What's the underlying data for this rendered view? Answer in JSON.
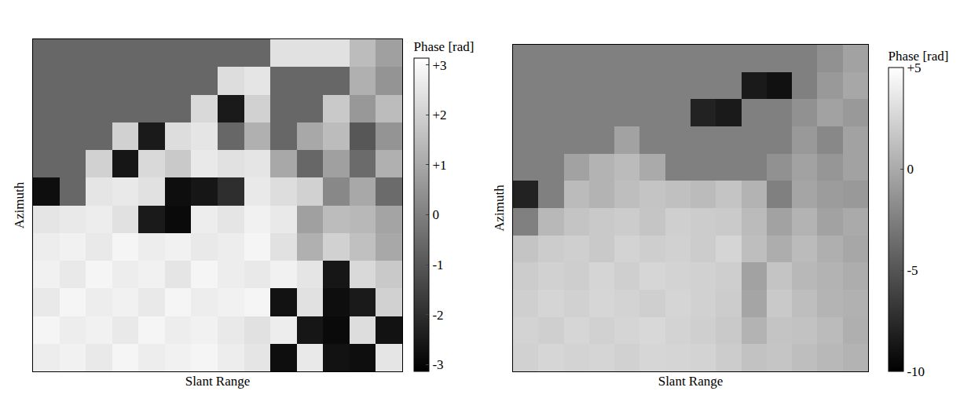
{
  "chart_data": [
    {
      "type": "heatmap",
      "x_label": "Slant Range",
      "y_label": "Azimuth",
      "xlim": [
        0,
        14
      ],
      "ylim": [
        12,
        0
      ],
      "tick_labels": false,
      "colorbar_title": "Phase [rad]",
      "colorbar_range": [
        -3.14,
        3.14
      ],
      "colorbar_ticks": [
        {
          "value": 3,
          "label": "+3"
        },
        {
          "value": 2,
          "label": "+2"
        },
        {
          "value": 1,
          "label": "+1"
        },
        0,
        -1,
        -2,
        -3
      ],
      "z": [
        [
          -0.6,
          -0.6,
          -0.6,
          -0.6,
          -0.6,
          -0.6,
          -0.6,
          -0.6,
          -0.6,
          2.4,
          2.4,
          2.4,
          1.5,
          0.8
        ],
        [
          -0.6,
          -0.6,
          -0.6,
          -0.6,
          -0.6,
          -0.6,
          -0.6,
          2.3,
          2.5,
          -0.6,
          -0.6,
          -0.6,
          1.2,
          0.5
        ],
        [
          -0.6,
          -0.6,
          -0.6,
          -0.6,
          -0.6,
          -0.6,
          2.2,
          -2.5,
          2.0,
          -0.6,
          -0.6,
          1.8,
          0.6,
          1.5
        ],
        [
          -0.6,
          -0.6,
          -0.6,
          2.0,
          -2.5,
          2.3,
          2.5,
          -0.6,
          1.2,
          -0.6,
          1.0,
          1.5,
          -1.0,
          0.5
        ],
        [
          -0.6,
          -0.6,
          2.0,
          -2.6,
          2.2,
          1.8,
          2.6,
          2.4,
          2.5,
          1.0,
          -0.6,
          0.8,
          -0.5,
          1.2
        ],
        [
          -2.8,
          -0.6,
          2.5,
          2.6,
          2.4,
          -2.8,
          -2.6,
          -2.0,
          2.6,
          2.3,
          2.0,
          0.2,
          1.0,
          -0.5
        ],
        [
          2.5,
          2.6,
          2.7,
          2.4,
          -2.5,
          -2.9,
          2.7,
          2.5,
          2.8,
          2.6,
          0.8,
          1.5,
          1.4,
          0.9
        ],
        [
          2.7,
          2.8,
          2.6,
          2.9,
          2.7,
          2.8,
          2.6,
          2.7,
          2.9,
          2.4,
          1.2,
          2.0,
          1.6,
          1.0
        ],
        [
          2.8,
          2.6,
          2.9,
          2.7,
          2.8,
          2.5,
          2.9,
          2.7,
          2.6,
          2.8,
          2.5,
          -2.6,
          2.2,
          1.8
        ],
        [
          2.6,
          2.9,
          2.7,
          2.8,
          2.6,
          2.9,
          2.7,
          2.8,
          2.9,
          -2.7,
          2.4,
          -2.8,
          -2.5,
          2.0
        ],
        [
          2.9,
          2.7,
          2.8,
          2.6,
          2.9,
          2.7,
          2.8,
          2.6,
          2.4,
          2.7,
          -2.6,
          -2.9,
          2.3,
          -2.7
        ],
        [
          2.7,
          2.8,
          2.6,
          2.9,
          2.7,
          2.8,
          2.9,
          2.7,
          2.5,
          -2.8,
          2.6,
          -2.7,
          -2.8,
          2.5
        ]
      ]
    },
    {
      "type": "heatmap",
      "x_label": "Slant Range",
      "y_label": "Azimuth",
      "xlim": [
        0,
        14
      ],
      "ylim": [
        12,
        0
      ],
      "tick_labels": false,
      "colorbar_title": "Phase [rad]",
      "colorbar_range": [
        -10,
        5
      ],
      "colorbar_ticks": [
        {
          "value": 5,
          "label": "+5"
        },
        0,
        -5,
        -10
      ],
      "z": [
        [
          -2.5,
          -2.5,
          -2.5,
          -2.5,
          -2.5,
          -2.5,
          -2.5,
          -2.5,
          -2.5,
          -2.5,
          -2.5,
          -2.5,
          -1.5,
          -0.5
        ],
        [
          -2.5,
          -2.5,
          -2.5,
          -2.5,
          -2.5,
          -2.5,
          -2.5,
          -2.5,
          -2.5,
          -8.5,
          -9,
          -2.5,
          -1.0,
          -0.2
        ],
        [
          -2.5,
          -2.5,
          -2.5,
          -2.5,
          -2.5,
          -2.5,
          -2.5,
          -8,
          -8.5,
          -2.5,
          -2.5,
          -1.5,
          -0.5,
          -1
        ],
        [
          -2.5,
          -2.5,
          -2.5,
          -2.5,
          -0.5,
          -2.5,
          -2.5,
          -2.5,
          -2.5,
          -2.5,
          -2.5,
          -1.0,
          -2.0,
          -0.5
        ],
        [
          -2.5,
          -2.5,
          -0.5,
          0.5,
          1.0,
          0,
          -2.5,
          -2.5,
          -2.5,
          -2.5,
          -1.5,
          -0.5,
          -1.2,
          -0.5
        ],
        [
          -8,
          -2.5,
          1.0,
          0.5,
          1.2,
          1.5,
          1.3,
          1.0,
          1.5,
          0.5,
          -2.5,
          -0.3,
          -0.8,
          -1.0
        ],
        [
          -2.5,
          0.8,
          1.5,
          1.8,
          2.0,
          1.6,
          2.2,
          2.0,
          1.9,
          1.0,
          -0.5,
          0.5,
          -0.5,
          0
        ],
        [
          1.5,
          2.0,
          2.2,
          1.8,
          2.4,
          2.1,
          2.3,
          2.0,
          2.5,
          1.2,
          0.2,
          1.0,
          0.3,
          -0.2
        ],
        [
          2.0,
          2.3,
          2.1,
          2.5,
          2.2,
          2.6,
          2.4,
          2.3,
          2.1,
          -0.5,
          1.5,
          0.8,
          0.5,
          0.2
        ],
        [
          2.2,
          2.5,
          2.3,
          2.6,
          2.4,
          2.2,
          2.5,
          2.3,
          2.0,
          -0.3,
          1.8,
          1.2,
          0.6,
          0.4
        ],
        [
          2.4,
          2.2,
          2.6,
          2.3,
          2.5,
          2.7,
          2.4,
          2.2,
          1.8,
          0.5,
          1.5,
          1.4,
          1.0,
          0.3
        ],
        [
          2.3,
          2.6,
          2.4,
          2.5,
          2.3,
          2.6,
          2.5,
          2.4,
          2.0,
          1.4,
          1.6,
          1.2,
          0.8,
          0.5
        ]
      ]
    }
  ]
}
